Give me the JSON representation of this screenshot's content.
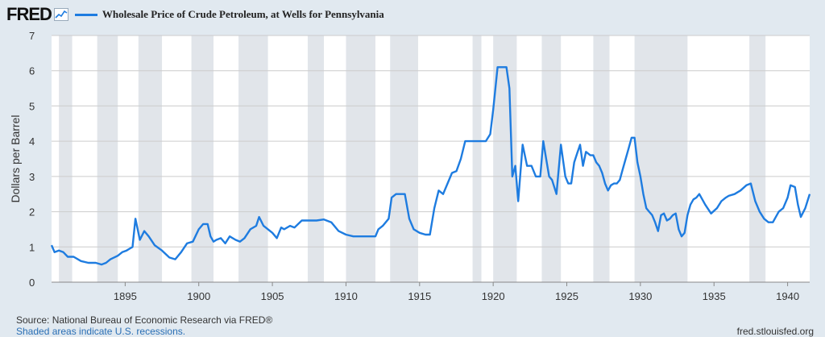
{
  "header": {
    "logo_text": "FRED",
    "logo_icon": "line-chart-icon"
  },
  "colors": {
    "series": "#1e7ce0",
    "recession": "#e1e5ea",
    "grid": "#cccccc",
    "plot_bg": "#ffffff",
    "page_bg": "#e1e9f0"
  },
  "footer": {
    "source": "Source: National Bureau of Economic Research via FRED®",
    "recessions": "Shaded areas indicate U.S. recessions.",
    "site": "fred.stlouisfed.org"
  },
  "chart_data": {
    "type": "line",
    "title": "",
    "xlabel": "",
    "ylabel": "Dollars per Barrel",
    "xlim": [
      1890.0,
      1941.5
    ],
    "ylim": [
      0,
      7
    ],
    "x_ticks": [
      1895,
      1900,
      1905,
      1910,
      1915,
      1920,
      1925,
      1930,
      1935,
      1940
    ],
    "y_ticks": [
      0,
      1,
      2,
      3,
      4,
      5,
      6,
      7
    ],
    "grid": "horizontal",
    "legend": "top-left",
    "recessions": [
      [
        1890.5,
        1891.4
      ],
      [
        1893.1,
        1894.5
      ],
      [
        1895.9,
        1897.5
      ],
      [
        1899.5,
        1901.0
      ],
      [
        1902.7,
        1904.7
      ],
      [
        1907.4,
        1908.5
      ],
      [
        1910.0,
        1912.0
      ],
      [
        1913.0,
        1914.9
      ],
      [
        1918.6,
        1919.2
      ],
      [
        1920.0,
        1921.6
      ],
      [
        1923.3,
        1924.6
      ],
      [
        1926.8,
        1927.9
      ],
      [
        1929.6,
        1933.2
      ],
      [
        1937.4,
        1938.5
      ]
    ],
    "series": [
      {
        "name": "Wholesale Price of Crude Petroleum, at Wells for Pennsylvania",
        "x": [
          1890.0,
          1890.2,
          1890.5,
          1890.8,
          1891.1,
          1891.5,
          1892.0,
          1892.5,
          1893.0,
          1893.4,
          1893.7,
          1894.0,
          1894.5,
          1894.8,
          1895.1,
          1895.3,
          1895.5,
          1895.7,
          1896.0,
          1896.3,
          1896.6,
          1897.0,
          1897.5,
          1898.0,
          1898.4,
          1898.8,
          1899.2,
          1899.6,
          1900.0,
          1900.3,
          1900.6,
          1900.8,
          1901.0,
          1901.2,
          1901.5,
          1901.8,
          1902.1,
          1902.5,
          1902.8,
          1903.1,
          1903.5,
          1903.9,
          1904.1,
          1904.4,
          1904.7,
          1905.0,
          1905.3,
          1905.6,
          1905.8,
          1906.2,
          1906.5,
          1907.0,
          1907.5,
          1908.0,
          1908.5,
          1909.0,
          1909.5,
          1910.0,
          1910.5,
          1911.0,
          1911.5,
          1912.0,
          1912.2,
          1912.5,
          1912.9,
          1913.1,
          1913.4,
          1913.7,
          1914.0,
          1914.3,
          1914.6,
          1915.0,
          1915.4,
          1915.7,
          1916.0,
          1916.3,
          1916.6,
          1916.9,
          1917.2,
          1917.5,
          1917.8,
          1918.1,
          1918.5,
          1919.0,
          1919.5,
          1919.8,
          1920.0,
          1920.3,
          1920.6,
          1920.9,
          1921.1,
          1921.3,
          1921.5,
          1921.7,
          1922.0,
          1922.3,
          1922.6,
          1922.9,
          1923.2,
          1923.4,
          1923.6,
          1923.8,
          1924.0,
          1924.3,
          1924.6,
          1924.9,
          1925.1,
          1925.3,
          1925.5,
          1925.7,
          1925.9,
          1926.1,
          1926.3,
          1926.6,
          1926.8,
          1927.0,
          1927.2,
          1927.4,
          1927.6,
          1927.8,
          1928.0,
          1928.2,
          1928.4,
          1928.6,
          1928.8,
          1929.0,
          1929.2,
          1929.4,
          1929.6,
          1929.8,
          1930.0,
          1930.2,
          1930.4,
          1930.6,
          1930.8,
          1931.0,
          1931.2,
          1931.4,
          1931.6,
          1931.8,
          1932.0,
          1932.2,
          1932.4,
          1932.6,
          1932.8,
          1933.0,
          1933.2,
          1933.4,
          1933.6,
          1933.8,
          1934.0,
          1934.4,
          1934.8,
          1935.2,
          1935.5,
          1935.8,
          1936.0,
          1936.4,
          1936.8,
          1937.2,
          1937.5,
          1937.8,
          1938.1,
          1938.4,
          1938.7,
          1939.0,
          1939.4,
          1939.7,
          1940.0,
          1940.2,
          1940.5,
          1940.7,
          1940.9,
          1941.2,
          1941.5
        ],
        "values": [
          1.05,
          0.85,
          0.9,
          0.85,
          0.72,
          0.72,
          0.6,
          0.55,
          0.55,
          0.5,
          0.55,
          0.65,
          0.75,
          0.85,
          0.9,
          0.95,
          1.0,
          1.8,
          1.2,
          1.45,
          1.3,
          1.05,
          0.9,
          0.7,
          0.65,
          0.85,
          1.1,
          1.15,
          1.5,
          1.65,
          1.65,
          1.3,
          1.15,
          1.2,
          1.25,
          1.1,
          1.3,
          1.2,
          1.15,
          1.25,
          1.5,
          1.6,
          1.85,
          1.6,
          1.5,
          1.4,
          1.25,
          1.55,
          1.5,
          1.6,
          1.55,
          1.75,
          1.75,
          1.75,
          1.78,
          1.7,
          1.45,
          1.35,
          1.3,
          1.3,
          1.3,
          1.3,
          1.5,
          1.6,
          1.8,
          2.4,
          2.5,
          2.5,
          2.5,
          1.8,
          1.5,
          1.4,
          1.35,
          1.35,
          2.1,
          2.6,
          2.5,
          2.8,
          3.1,
          3.15,
          3.5,
          4.0,
          4.0,
          4.0,
          4.0,
          4.2,
          4.9,
          6.1,
          6.1,
          6.1,
          5.5,
          3.0,
          3.3,
          2.3,
          3.9,
          3.3,
          3.3,
          3.0,
          3.0,
          4.0,
          3.5,
          3.0,
          2.9,
          2.5,
          3.9,
          3.0,
          2.8,
          2.8,
          3.4,
          3.65,
          3.9,
          3.3,
          3.7,
          3.6,
          3.6,
          3.4,
          3.3,
          3.1,
          2.8,
          2.6,
          2.75,
          2.8,
          2.8,
          2.9,
          3.2,
          3.5,
          3.8,
          4.1,
          4.1,
          3.4,
          3.0,
          2.5,
          2.1,
          2.0,
          1.9,
          1.7,
          1.45,
          1.9,
          1.95,
          1.75,
          1.8,
          1.9,
          1.95,
          1.5,
          1.3,
          1.4,
          1.9,
          2.2,
          2.35,
          2.4,
          2.5,
          2.2,
          1.95,
          2.1,
          2.3,
          2.4,
          2.45,
          2.5,
          2.6,
          2.75,
          2.8,
          2.3,
          2.0,
          1.8,
          1.7,
          1.7,
          2.0,
          2.1,
          2.4,
          2.75,
          2.7,
          2.2,
          1.85,
          2.1,
          2.5
        ]
      }
    ]
  }
}
